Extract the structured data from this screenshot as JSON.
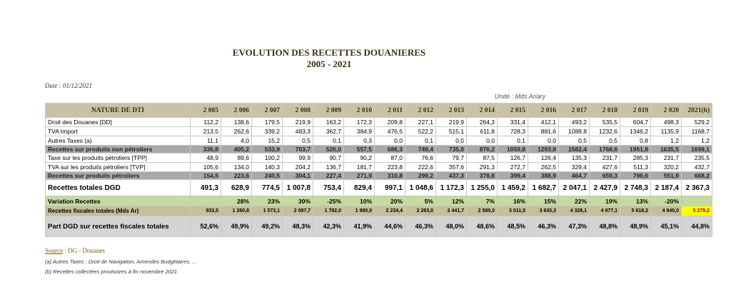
{
  "title_line1": "EVOLUTION DES RECETTES DOUANIERES",
  "title_line2": "2005 - 2021",
  "date": "Date : 01/12/2021",
  "unit": "Unité : Mds Ariary",
  "table": {
    "header": [
      "NATURE DE DTI",
      "2 005",
      "2 006",
      "2 007",
      "2 008",
      "2 009",
      "2 010",
      "2 011",
      "2 012",
      "2 013",
      "2 014",
      "2 015",
      "2 016",
      "2 017",
      "2 018",
      "2 019",
      "2 020",
      "2021(b)"
    ],
    "rows": [
      {
        "type": "r",
        "label": "Droit des Douanes [DD]",
        "values": [
          "112,2",
          "138,6",
          "179,5",
          "219,9",
          "163,2",
          "172,3",
          "209,8",
          "227,1",
          "219,9",
          "264,3",
          "331,4",
          "412,1",
          "493,2",
          "535,5",
          "604,7",
          "498,3",
          "529,2"
        ]
      },
      {
        "type": "r",
        "label": "TVA Import",
        "values": [
          "213,5",
          "262,6",
          "339,2",
          "483,3",
          "362,7",
          "384,9",
          "476,5",
          "522,2",
          "515,1",
          "611,8",
          "728,3",
          "881,6",
          "1088,8",
          "1232,6",
          "1346,2",
          "1135,9",
          "1168,7"
        ]
      },
      {
        "type": "r",
        "label": "Autres Taxes (a)",
        "values": [
          "11,1",
          "4,0",
          "15,2",
          "0,5",
          "0,1",
          "0,3",
          "0,0",
          "0,1",
          "0,0",
          "0,0",
          "0,1",
          "0,0",
          "0,5",
          "0,5",
          "0,8",
          "1,2",
          "1,2"
        ]
      },
      {
        "type": "sub",
        "label": "Recettes sur produits non pétroliers",
        "values": [
          "336,8",
          "405,2",
          "533,9",
          "703,7",
          "526,0",
          "557,5",
          "686,3",
          "749,4",
          "735,0",
          "876,2",
          "1059,8",
          "1293,8",
          "1582,4",
          "1768,6",
          "1951,8",
          "1635,5",
          "1699,1"
        ]
      },
      {
        "type": "r",
        "label": "Taxe sur les produits pétroliers [TPP]",
        "values": [
          "48,9",
          "89,6",
          "100,2",
          "99,9",
          "90,7",
          "90,2",
          "87,0",
          "76,6",
          "79,7",
          "87,5",
          "126,7",
          "126,4",
          "135,3",
          "231,7",
          "285,3",
          "231,7",
          "235,5"
        ]
      },
      {
        "type": "r",
        "label": "TVA sur les produits pétroliers [TVP]",
        "values": [
          "105,6",
          "134,0",
          "140,3",
          "204,2",
          "136,7",
          "181,7",
          "223,8",
          "222,6",
          "357,6",
          "291,3",
          "272,7",
          "262,5",
          "329,4",
          "427,6",
          "511,3",
          "320,2",
          "432,7"
        ]
      },
      {
        "type": "sub",
        "label": "Recettes sur produits pétroliers",
        "values": [
          "154,5",
          "223,6",
          "240,5",
          "304,1",
          "227,4",
          "271,9",
          "310,8",
          "299,2",
          "437,3",
          "378,8",
          "399,4",
          "388,9",
          "464,7",
          "659,3",
          "796,6",
          "551,9",
          "668,2"
        ]
      },
      {
        "type": "gdg",
        "label": "Recettes totales DGD",
        "values": [
          "491,3",
          "628,9",
          "774,5",
          "1 007,8",
          "753,4",
          "829,4",
          "997,1",
          "1 048,6",
          "1 172,3",
          "1 255,0",
          "1 459,2",
          "1 682,7",
          "2 047,1",
          "2 427,9",
          "2 748,3",
          "2 187,4",
          "2 367,3"
        ]
      },
      {
        "type": "var",
        "label": "Variation Recettes",
        "values": [
          "",
          "28%",
          "23%",
          "30%",
          "-25%",
          "10%",
          "20%",
          "5%",
          "12%",
          "7%",
          "16%",
          "15%",
          "22%",
          "19%",
          "13%",
          "-20%",
          ""
        ]
      },
      {
        "type": "rf",
        "label": "Recettes fiscales totales (Mds Ar)",
        "values": [
          "933,5",
          "1 260,8",
          "1 573,1",
          "2 087,7",
          "1 782,0",
          "1 980,9",
          "2 234,4",
          "2 263,0",
          "2 441,7",
          "2 585,0",
          "3 011,5",
          "3 635,3",
          "4 328,1",
          "4 977,1",
          "5 618,2",
          "4 845,0",
          "5 279,2"
        ]
      },
      {
        "type": "part",
        "label": "Part DGD sur recettes fiscales totales",
        "values": [
          "52,6%",
          "49,9%",
          "49,2%",
          "48,3%",
          "42,3%",
          "41,9%",
          "44,6%",
          "46,3%",
          "48,0%",
          "48,6%",
          "48,5%",
          "46,3%",
          "47,3%",
          "48,8%",
          "48,9%",
          "45,1%",
          "44,8%"
        ]
      }
    ]
  },
  "source_label": "Source",
  "source_text": " : DG - Douanes",
  "note_a": "(a) Autres Taxes : Droit de Navigation, Amendes Budgétaires, ...",
  "note_b": "(b) Recettes collectées provisoires à fin novembre 2021",
  "colors": {
    "header_bg": "#c8c3a6",
    "subtotal_bg": "#a9a9a9",
    "variation_bg": "#c6d9a0",
    "fiscal_bg": "#c4bf98",
    "part_bg": "#d4d4d4",
    "highlight": "#ffff00"
  }
}
